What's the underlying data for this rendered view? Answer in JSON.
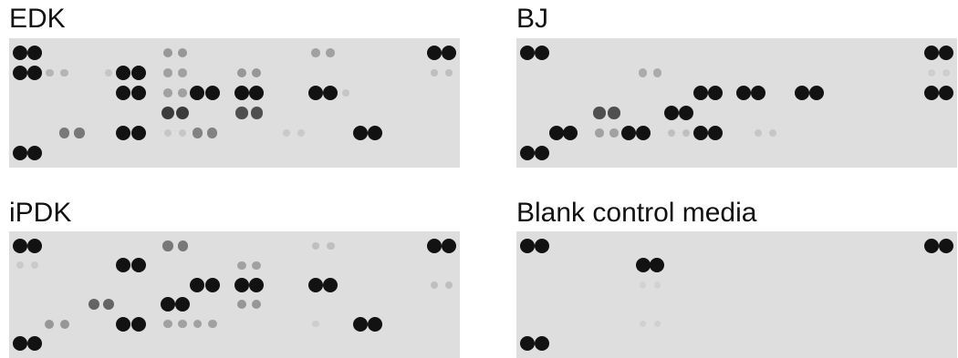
{
  "panels": [
    {
      "id": "edk",
      "title": "EDK",
      "spots": [
        {
          "col": 0,
          "row": 0,
          "v": 1
        },
        {
          "col": 1,
          "row": 0,
          "v": 1
        },
        {
          "col": 10,
          "row": 0,
          "v": 0.35
        },
        {
          "col": 11,
          "row": 0,
          "v": 0.35
        },
        {
          "col": 20,
          "row": 0,
          "v": 0.3
        },
        {
          "col": 21,
          "row": 0,
          "v": 0.3
        },
        {
          "col": 28,
          "row": 0,
          "v": 1
        },
        {
          "col": 29,
          "row": 0,
          "v": 1
        },
        {
          "col": 0,
          "row": 1,
          "v": 1
        },
        {
          "col": 1,
          "row": 1,
          "v": 1
        },
        {
          "col": 2,
          "row": 1,
          "v": 0.2
        },
        {
          "col": 3,
          "row": 1,
          "v": 0.2
        },
        {
          "col": 6,
          "row": 1,
          "v": 0.12
        },
        {
          "col": 7,
          "row": 1,
          "v": 1
        },
        {
          "col": 8,
          "row": 1,
          "v": 1
        },
        {
          "col": 10,
          "row": 1,
          "v": 0.3
        },
        {
          "col": 11,
          "row": 1,
          "v": 0.3
        },
        {
          "col": 15,
          "row": 1,
          "v": 0.35
        },
        {
          "col": 16,
          "row": 1,
          "v": 0.35
        },
        {
          "col": 28,
          "row": 1,
          "v": 0.15
        },
        {
          "col": 29,
          "row": 1,
          "v": 0.15
        },
        {
          "col": 7,
          "row": 2,
          "v": 1
        },
        {
          "col": 8,
          "row": 2,
          "v": 1
        },
        {
          "col": 10,
          "row": 2,
          "v": 0.3
        },
        {
          "col": 11,
          "row": 2,
          "v": 0.3
        },
        {
          "col": 12,
          "row": 2,
          "v": 1
        },
        {
          "col": 13,
          "row": 2,
          "v": 1
        },
        {
          "col": 15,
          "row": 2,
          "v": 1
        },
        {
          "col": 16,
          "row": 2,
          "v": 1
        },
        {
          "col": 20,
          "row": 2,
          "v": 1
        },
        {
          "col": 21,
          "row": 2,
          "v": 1
        },
        {
          "col": 22,
          "row": 2,
          "v": 0.12
        },
        {
          "col": 10,
          "row": 3,
          "v": 0.8
        },
        {
          "col": 11,
          "row": 3,
          "v": 0.8
        },
        {
          "col": 15,
          "row": 3,
          "v": 0.7
        },
        {
          "col": 16,
          "row": 3,
          "v": 0.7
        },
        {
          "col": 3,
          "row": 4,
          "v": 0.5
        },
        {
          "col": 4,
          "row": 4,
          "v": 0.5
        },
        {
          "col": 7,
          "row": 4,
          "v": 1
        },
        {
          "col": 8,
          "row": 4,
          "v": 1
        },
        {
          "col": 10,
          "row": 4,
          "v": 0.12
        },
        {
          "col": 11,
          "row": 4,
          "v": 0.12
        },
        {
          "col": 12,
          "row": 4,
          "v": 0.45
        },
        {
          "col": 13,
          "row": 4,
          "v": 0.45
        },
        {
          "col": 18,
          "row": 4,
          "v": 0.1
        },
        {
          "col": 19,
          "row": 4,
          "v": 0.1
        },
        {
          "col": 23,
          "row": 4,
          "v": 1
        },
        {
          "col": 24,
          "row": 4,
          "v": 1
        },
        {
          "col": 0,
          "row": 5,
          "v": 1
        },
        {
          "col": 1,
          "row": 5,
          "v": 1
        }
      ]
    },
    {
      "id": "bj",
      "title": "BJ",
      "spots": [
        {
          "col": 0,
          "row": 0,
          "v": 1
        },
        {
          "col": 1,
          "row": 0,
          "v": 1
        },
        {
          "col": 28,
          "row": 0,
          "v": 1
        },
        {
          "col": 29,
          "row": 0,
          "v": 1
        },
        {
          "col": 8,
          "row": 1,
          "v": 0.25
        },
        {
          "col": 9,
          "row": 1,
          "v": 0.25
        },
        {
          "col": 28,
          "row": 1,
          "v": 0.08
        },
        {
          "col": 29,
          "row": 1,
          "v": 0.08
        },
        {
          "col": 12,
          "row": 2,
          "v": 1
        },
        {
          "col": 13,
          "row": 2,
          "v": 1
        },
        {
          "col": 15,
          "row": 2,
          "v": 1
        },
        {
          "col": 16,
          "row": 2,
          "v": 1
        },
        {
          "col": 19,
          "row": 2,
          "v": 1
        },
        {
          "col": 20,
          "row": 2,
          "v": 1
        },
        {
          "col": 28,
          "row": 2,
          "v": 1
        },
        {
          "col": 29,
          "row": 2,
          "v": 1
        },
        {
          "col": 5,
          "row": 3,
          "v": 0.7
        },
        {
          "col": 6,
          "row": 3,
          "v": 0.7
        },
        {
          "col": 10,
          "row": 3,
          "v": 1
        },
        {
          "col": 11,
          "row": 3,
          "v": 1
        },
        {
          "col": 2,
          "row": 4,
          "v": 1
        },
        {
          "col": 3,
          "row": 4,
          "v": 1
        },
        {
          "col": 5,
          "row": 4,
          "v": 0.3
        },
        {
          "col": 6,
          "row": 4,
          "v": 0.3
        },
        {
          "col": 7,
          "row": 4,
          "v": 1
        },
        {
          "col": 8,
          "row": 4,
          "v": 1
        },
        {
          "col": 10,
          "row": 4,
          "v": 0.15
        },
        {
          "col": 11,
          "row": 4,
          "v": 0.15
        },
        {
          "col": 12,
          "row": 4,
          "v": 1
        },
        {
          "col": 13,
          "row": 4,
          "v": 1
        },
        {
          "col": 16,
          "row": 4,
          "v": 0.12
        },
        {
          "col": 17,
          "row": 4,
          "v": 0.12
        },
        {
          "col": 0,
          "row": 5,
          "v": 1
        },
        {
          "col": 1,
          "row": 5,
          "v": 1
        }
      ]
    },
    {
      "id": "ipdk",
      "title": "iPDK",
      "spots": [
        {
          "col": 0,
          "row": 0,
          "v": 1
        },
        {
          "col": 1,
          "row": 0,
          "v": 1
        },
        {
          "col": 10,
          "row": 0,
          "v": 0.5
        },
        {
          "col": 11,
          "row": 0,
          "v": 0.5
        },
        {
          "col": 20,
          "row": 0,
          "v": 0.15
        },
        {
          "col": 21,
          "row": 0,
          "v": 0.15
        },
        {
          "col": 28,
          "row": 0,
          "v": 1
        },
        {
          "col": 29,
          "row": 0,
          "v": 1
        },
        {
          "col": 0,
          "row": 1,
          "v": 0.1
        },
        {
          "col": 1,
          "row": 1,
          "v": 0.1
        },
        {
          "col": 7,
          "row": 1,
          "v": 1
        },
        {
          "col": 8,
          "row": 1,
          "v": 1
        },
        {
          "col": 15,
          "row": 1,
          "v": 0.3
        },
        {
          "col": 16,
          "row": 1,
          "v": 0.3
        },
        {
          "col": 12,
          "row": 2,
          "v": 1
        },
        {
          "col": 13,
          "row": 2,
          "v": 1
        },
        {
          "col": 15,
          "row": 2,
          "v": 1
        },
        {
          "col": 16,
          "row": 2,
          "v": 1
        },
        {
          "col": 20,
          "row": 2,
          "v": 1
        },
        {
          "col": 21,
          "row": 2,
          "v": 1
        },
        {
          "col": 28,
          "row": 2,
          "v": 0.15
        },
        {
          "col": 29,
          "row": 2,
          "v": 0.15
        },
        {
          "col": 5,
          "row": 3,
          "v": 0.6
        },
        {
          "col": 6,
          "row": 3,
          "v": 0.6
        },
        {
          "col": 10,
          "row": 3,
          "v": 1
        },
        {
          "col": 11,
          "row": 3,
          "v": 1
        },
        {
          "col": 15,
          "row": 3,
          "v": 0.35
        },
        {
          "col": 16,
          "row": 3,
          "v": 0.35
        },
        {
          "col": 2,
          "row": 4,
          "v": 0.35
        },
        {
          "col": 3,
          "row": 4,
          "v": 0.35
        },
        {
          "col": 7,
          "row": 4,
          "v": 1
        },
        {
          "col": 8,
          "row": 4,
          "v": 1
        },
        {
          "col": 10,
          "row": 4,
          "v": 0.3
        },
        {
          "col": 11,
          "row": 4,
          "v": 0.3
        },
        {
          "col": 12,
          "row": 4,
          "v": 0.3
        },
        {
          "col": 13,
          "row": 4,
          "v": 0.3
        },
        {
          "col": 20,
          "row": 4,
          "v": 0.08
        },
        {
          "col": 23,
          "row": 4,
          "v": 1
        },
        {
          "col": 24,
          "row": 4,
          "v": 1
        },
        {
          "col": 0,
          "row": 5,
          "v": 1
        },
        {
          "col": 1,
          "row": 5,
          "v": 1
        }
      ]
    },
    {
      "id": "blank",
      "title": "Blank control media",
      "spots": [
        {
          "col": 0,
          "row": 0,
          "v": 1
        },
        {
          "col": 1,
          "row": 0,
          "v": 1
        },
        {
          "col": 28,
          "row": 0,
          "v": 1
        },
        {
          "col": 29,
          "row": 0,
          "v": 1
        },
        {
          "col": 8,
          "row": 1,
          "v": 1
        },
        {
          "col": 9,
          "row": 1,
          "v": 1
        },
        {
          "col": 8,
          "row": 2,
          "v": 0.06
        },
        {
          "col": 9,
          "row": 2,
          "v": 0.06
        },
        {
          "col": 8,
          "row": 4,
          "v": 0.07
        },
        {
          "col": 9,
          "row": 4,
          "v": 0.07
        },
        {
          "col": 0,
          "row": 5,
          "v": 1
        },
        {
          "col": 1,
          "row": 5,
          "v": 1
        }
      ]
    }
  ]
}
